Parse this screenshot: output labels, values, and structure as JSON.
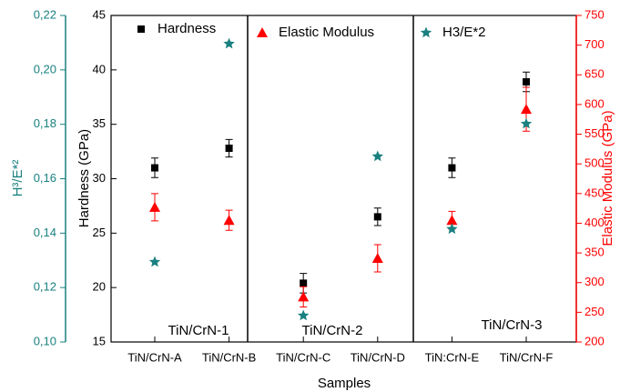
{
  "chart_data": {
    "type": "scatter",
    "categories": [
      "TiN/CrN-A",
      "TiN/CrN-B",
      "TiN/CrN-C",
      "TiN/CrN-D",
      "TiN:CrN-E",
      "TiN/CrN-F"
    ],
    "xlabel": "Samples",
    "ylabel": "Hardness (GPa)",
    "y2label": "Elastic Modulus (GPa)",
    "y3label": "H³/E*²",
    "ylim": [
      15,
      45
    ],
    "yticks": [
      15,
      20,
      25,
      30,
      35,
      40,
      45
    ],
    "y2lim": [
      200,
      750
    ],
    "y2ticks": [
      200,
      250,
      300,
      350,
      400,
      450,
      500,
      550,
      600,
      650,
      700,
      750
    ],
    "y3lim": [
      0.1,
      0.22
    ],
    "y3ticks": [
      {
        "value": 0.1,
        "label": "0,10"
      },
      {
        "value": 0.12,
        "label": "0,12"
      },
      {
        "value": 0.14,
        "label": "0,14"
      },
      {
        "value": 0.16,
        "label": "0,16"
      },
      {
        "value": 0.18,
        "label": "0,18"
      },
      {
        "value": 0.2,
        "label": "0,20"
      },
      {
        "value": 0.22,
        "label": "0,22"
      }
    ],
    "annotations": [
      "TiN/CrN-1",
      "TiN/CrN-2",
      "TiN/CrN-3"
    ],
    "series": [
      {
        "name": "Hardness",
        "color": "#000000",
        "marker": "square",
        "axis": "y",
        "values": [
          31.0,
          32.8,
          20.4,
          26.5,
          31.0,
          38.9
        ],
        "errors": [
          0.9,
          0.8,
          0.9,
          0.8,
          0.9,
          0.9
        ]
      },
      {
        "name": "Elastic Modulus",
        "color": "#ff0000",
        "marker": "triangle",
        "axis": "y2",
        "values": [
          427,
          405,
          276,
          341,
          405,
          592
        ],
        "errors": [
          23,
          17,
          17,
          23,
          15,
          37
        ]
      },
      {
        "name": "H3/E*2",
        "color": "#1a8080",
        "marker": "star",
        "axis": "y3",
        "values": [
          0.1294,
          0.2096,
          0.1097,
          0.1682,
          0.1415,
          0.1802
        ]
      }
    ]
  }
}
